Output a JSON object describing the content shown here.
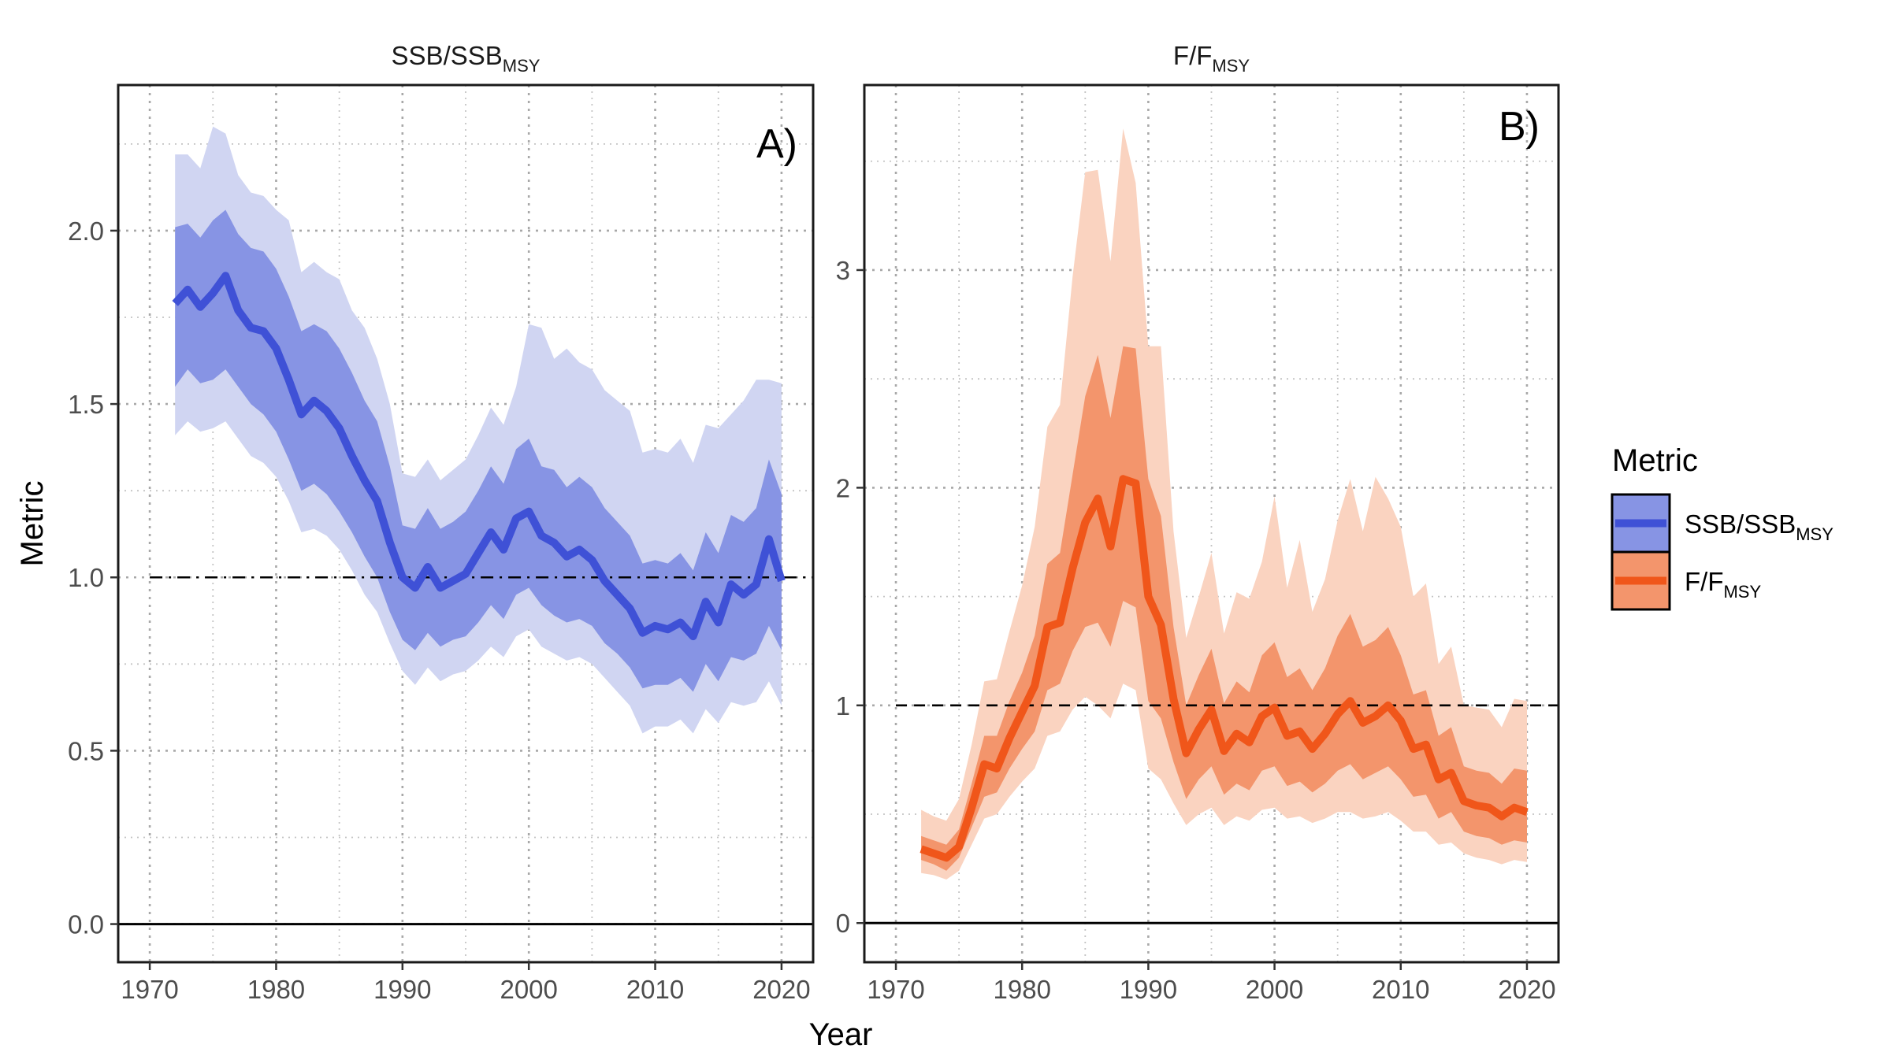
{
  "figure": {
    "xlabel": "Year",
    "ylabel": "Metric",
    "legend": {
      "title": "Metric",
      "position": "right",
      "items": [
        {
          "main": "SSB/SSB",
          "sub": "MSY",
          "line_color": "#3f51d6",
          "band_inner": "#8794e4",
          "band_outer": "#d0d5f2"
        },
        {
          "main": "F/F",
          "sub": "MSY",
          "line_color": "#f0561a",
          "band_inner": "#f3956c",
          "band_outer": "#fad3c0"
        }
      ]
    }
  },
  "chart_data": [
    {
      "type": "line",
      "panel_tag": "A)",
      "title": {
        "main": "SSB/SSB",
        "sub": "MSY"
      },
      "xlim": [
        1967.5,
        2022.5
      ],
      "ylim": [
        -0.11,
        2.42
      ],
      "x_ticks": [
        1970,
        1980,
        1990,
        2000,
        2010,
        2020
      ],
      "y_ticks": [
        0.0,
        0.5,
        1.0,
        1.5,
        2.0
      ],
      "y_tick_labels": [
        "0.0",
        "0.5",
        "1.0",
        "1.5",
        "2.0"
      ],
      "reference_line": {
        "y": 1.0,
        "style": "dash-dot"
      },
      "zero_line": 0,
      "grid": "dotted",
      "colors": {
        "line": "#3f51d6",
        "band_inner": "#8794e4",
        "band_outer": "#d0d5f2"
      },
      "series": [
        {
          "name": "SSB/SSB MSY",
          "x": [
            1972,
            1973,
            1974,
            1975,
            1976,
            1977,
            1978,
            1979,
            1980,
            1981,
            1982,
            1983,
            1984,
            1985,
            1986,
            1987,
            1988,
            1989,
            1990,
            1991,
            1992,
            1993,
            1994,
            1995,
            1996,
            1997,
            1998,
            1999,
            2000,
            2001,
            2002,
            2003,
            2004,
            2005,
            2006,
            2007,
            2008,
            2009,
            2010,
            2011,
            2012,
            2013,
            2014,
            2015,
            2016,
            2017,
            2018,
            2019,
            2020
          ],
          "median": [
            1.79,
            1.83,
            1.78,
            1.82,
            1.87,
            1.77,
            1.72,
            1.71,
            1.66,
            1.57,
            1.47,
            1.51,
            1.48,
            1.43,
            1.35,
            1.28,
            1.22,
            1.1,
            1.0,
            0.97,
            1.03,
            0.97,
            0.99,
            1.01,
            1.07,
            1.13,
            1.08,
            1.17,
            1.19,
            1.12,
            1.1,
            1.06,
            1.08,
            1.05,
            0.99,
            0.95,
            0.91,
            0.84,
            0.86,
            0.85,
            0.87,
            0.83,
            0.93,
            0.87,
            0.98,
            0.95,
            0.98,
            1.11,
            0.99
          ],
          "inner_lower": [
            1.55,
            1.6,
            1.56,
            1.57,
            1.6,
            1.55,
            1.5,
            1.47,
            1.42,
            1.34,
            1.25,
            1.27,
            1.24,
            1.19,
            1.13,
            1.06,
            1.0,
            0.9,
            0.82,
            0.79,
            0.84,
            0.8,
            0.82,
            0.83,
            0.87,
            0.92,
            0.88,
            0.95,
            0.97,
            0.92,
            0.89,
            0.87,
            0.88,
            0.86,
            0.81,
            0.78,
            0.74,
            0.68,
            0.69,
            0.69,
            0.71,
            0.67,
            0.75,
            0.7,
            0.77,
            0.76,
            0.78,
            0.86,
            0.79
          ],
          "inner_upper": [
            2.01,
            2.02,
            1.98,
            2.03,
            2.06,
            1.99,
            1.95,
            1.94,
            1.89,
            1.81,
            1.71,
            1.73,
            1.71,
            1.66,
            1.59,
            1.51,
            1.45,
            1.32,
            1.15,
            1.14,
            1.2,
            1.14,
            1.16,
            1.19,
            1.25,
            1.32,
            1.27,
            1.37,
            1.4,
            1.32,
            1.31,
            1.26,
            1.29,
            1.26,
            1.2,
            1.16,
            1.12,
            1.04,
            1.05,
            1.04,
            1.07,
            1.02,
            1.13,
            1.07,
            1.18,
            1.16,
            1.2,
            1.34,
            1.24
          ],
          "outer_lower": [
            1.41,
            1.45,
            1.42,
            1.43,
            1.45,
            1.4,
            1.35,
            1.33,
            1.29,
            1.22,
            1.13,
            1.14,
            1.12,
            1.08,
            1.02,
            0.95,
            0.9,
            0.81,
            0.73,
            0.69,
            0.74,
            0.7,
            0.72,
            0.73,
            0.76,
            0.8,
            0.77,
            0.83,
            0.85,
            0.8,
            0.78,
            0.76,
            0.77,
            0.75,
            0.71,
            0.67,
            0.63,
            0.55,
            0.57,
            0.57,
            0.59,
            0.55,
            0.62,
            0.58,
            0.64,
            0.63,
            0.64,
            0.7,
            0.63
          ],
          "outer_upper": [
            2.22,
            2.22,
            2.18,
            2.3,
            2.28,
            2.16,
            2.11,
            2.1,
            2.06,
            2.03,
            1.88,
            1.91,
            1.88,
            1.86,
            1.77,
            1.72,
            1.63,
            1.5,
            1.3,
            1.29,
            1.34,
            1.28,
            1.31,
            1.34,
            1.41,
            1.49,
            1.44,
            1.55,
            1.73,
            1.72,
            1.63,
            1.66,
            1.62,
            1.6,
            1.54,
            1.51,
            1.48,
            1.36,
            1.37,
            1.36,
            1.4,
            1.33,
            1.44,
            1.43,
            1.47,
            1.51,
            1.57,
            1.57,
            1.56
          ]
        }
      ]
    },
    {
      "type": "line",
      "panel_tag": "B)",
      "title": {
        "main": "F/F",
        "sub": "MSY"
      },
      "xlim": [
        1967.5,
        2022.5
      ],
      "ylim": [
        -0.18,
        3.85
      ],
      "x_ticks": [
        1970,
        1980,
        1990,
        2000,
        2010,
        2020
      ],
      "y_ticks": [
        0,
        1,
        2,
        3
      ],
      "y_tick_labels": [
        "0",
        "1",
        "2",
        "3"
      ],
      "reference_line": {
        "y": 1.0,
        "style": "dashed"
      },
      "zero_line": 0,
      "grid": "dotted",
      "colors": {
        "line": "#f0561a",
        "band_inner": "#f3956c",
        "band_outer": "#fad3c0"
      },
      "series": [
        {
          "name": "F/F MSY",
          "x": [
            1972,
            1973,
            1974,
            1975,
            1976,
            1977,
            1978,
            1979,
            1980,
            1981,
            1982,
            1983,
            1984,
            1985,
            1986,
            1987,
            1988,
            1989,
            1990,
            1991,
            1992,
            1993,
            1994,
            1995,
            1996,
            1997,
            1998,
            1999,
            2000,
            2001,
            2002,
            2003,
            2004,
            2005,
            2006,
            2007,
            2008,
            2009,
            2010,
            2011,
            2012,
            2013,
            2014,
            2015,
            2016,
            2017,
            2018,
            2019,
            2020
          ],
          "median": [
            0.34,
            0.32,
            0.3,
            0.35,
            0.53,
            0.73,
            0.71,
            0.85,
            0.97,
            1.09,
            1.36,
            1.38,
            1.63,
            1.84,
            1.95,
            1.73,
            2.04,
            2.02,
            1.5,
            1.37,
            1.03,
            0.78,
            0.89,
            0.98,
            0.79,
            0.87,
            0.83,
            0.95,
            0.99,
            0.86,
            0.88,
            0.8,
            0.87,
            0.96,
            1.02,
            0.92,
            0.95,
            1.0,
            0.93,
            0.8,
            0.82,
            0.66,
            0.69,
            0.56,
            0.54,
            0.53,
            0.49,
            0.53,
            0.51
          ],
          "inner_lower": [
            0.29,
            0.27,
            0.24,
            0.3,
            0.44,
            0.58,
            0.6,
            0.71,
            0.8,
            0.88,
            1.07,
            1.1,
            1.25,
            1.36,
            1.38,
            1.27,
            1.48,
            1.45,
            1.02,
            0.94,
            0.74,
            0.57,
            0.66,
            0.72,
            0.59,
            0.64,
            0.61,
            0.7,
            0.72,
            0.63,
            0.65,
            0.6,
            0.64,
            0.7,
            0.73,
            0.66,
            0.69,
            0.72,
            0.66,
            0.58,
            0.59,
            0.48,
            0.51,
            0.42,
            0.4,
            0.39,
            0.36,
            0.38,
            0.37
          ],
          "inner_upper": [
            0.4,
            0.38,
            0.36,
            0.43,
            0.64,
            0.86,
            0.86,
            1.02,
            1.15,
            1.32,
            1.65,
            1.7,
            2.06,
            2.42,
            2.61,
            2.32,
            2.65,
            2.64,
            2.04,
            1.87,
            1.36,
            1.0,
            1.14,
            1.26,
            1.01,
            1.11,
            1.06,
            1.23,
            1.29,
            1.13,
            1.17,
            1.07,
            1.17,
            1.32,
            1.42,
            1.27,
            1.3,
            1.36,
            1.23,
            1.05,
            1.07,
            0.86,
            0.9,
            0.72,
            0.7,
            0.69,
            0.64,
            0.71,
            0.7
          ],
          "outer_lower": [
            0.23,
            0.22,
            0.2,
            0.24,
            0.36,
            0.48,
            0.5,
            0.58,
            0.65,
            0.71,
            0.86,
            0.88,
            0.98,
            1.04,
            1.0,
            0.94,
            1.1,
            1.07,
            0.71,
            0.66,
            0.55,
            0.45,
            0.5,
            0.53,
            0.45,
            0.49,
            0.47,
            0.52,
            0.53,
            0.48,
            0.49,
            0.46,
            0.48,
            0.51,
            0.51,
            0.48,
            0.49,
            0.51,
            0.47,
            0.42,
            0.42,
            0.36,
            0.37,
            0.32,
            0.3,
            0.29,
            0.27,
            0.29,
            0.28
          ],
          "outer_upper": [
            0.52,
            0.49,
            0.47,
            0.57,
            0.82,
            1.11,
            1.12,
            1.34,
            1.55,
            1.82,
            2.28,
            2.38,
            2.97,
            3.45,
            3.46,
            3.04,
            3.65,
            3.4,
            2.65,
            2.65,
            1.8,
            1.31,
            1.5,
            1.7,
            1.33,
            1.52,
            1.49,
            1.66,
            1.96,
            1.54,
            1.76,
            1.43,
            1.58,
            1.85,
            2.04,
            1.8,
            2.05,
            1.95,
            1.82,
            1.5,
            1.56,
            1.19,
            1.27,
            1.0,
            0.99,
            0.98,
            0.9,
            1.03,
            1.02
          ]
        }
      ]
    }
  ]
}
